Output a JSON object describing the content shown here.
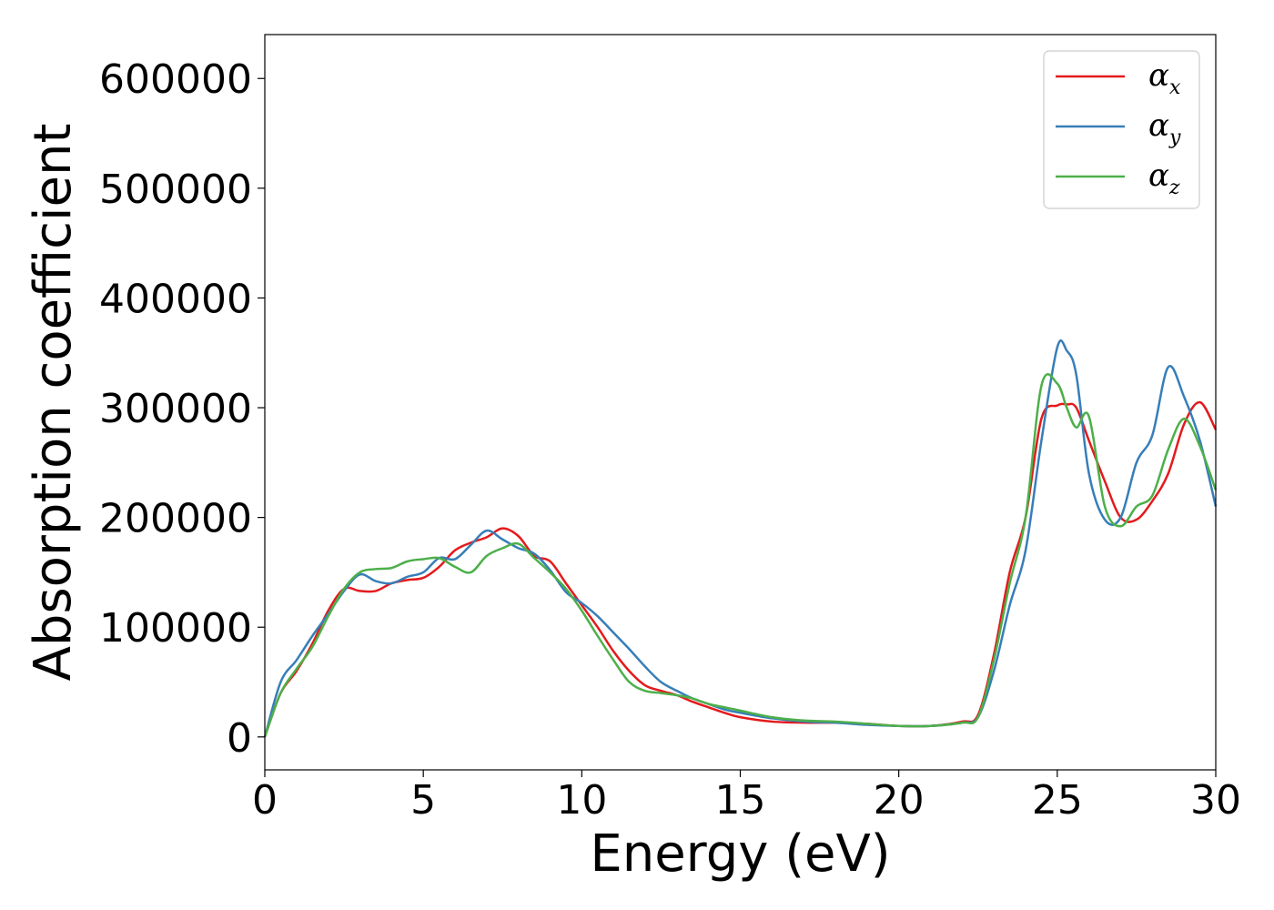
{
  "chart_data": {
    "type": "line",
    "xlabel": "Energy (eV)",
    "ylabel": "Absorption coefficient",
    "xlim": [
      0,
      30
    ],
    "ylim": [
      -30000,
      640000
    ],
    "xticks": [
      0,
      5,
      10,
      15,
      20,
      25,
      30
    ],
    "yticks": [
      0,
      100000,
      200000,
      300000,
      400000,
      500000,
      600000
    ],
    "grid": false,
    "legend_position": "top-right",
    "series": [
      {
        "name": "αx",
        "name_base": "α",
        "name_sub": "x",
        "color": "#e41a1c",
        "x": [
          0,
          0.5,
          1,
          1.5,
          2,
          2.5,
          3,
          3.5,
          4,
          4.5,
          5,
          5.5,
          6,
          6.5,
          7,
          7.5,
          8,
          8.5,
          9,
          9.5,
          10,
          10.5,
          11,
          11.5,
          12,
          12.5,
          13,
          13.5,
          14,
          14.5,
          15,
          16,
          17,
          18,
          19,
          20,
          21,
          22,
          22.5,
          23,
          23.5,
          24,
          24.5,
          25,
          25.3,
          25.6,
          26,
          26.5,
          27,
          27.5,
          28,
          28.5,
          29,
          29.5,
          30
        ],
        "y": [
          0,
          40000,
          60000,
          85000,
          115000,
          135000,
          133000,
          133000,
          140000,
          143000,
          145000,
          155000,
          170000,
          177000,
          182000,
          190000,
          183000,
          165000,
          160000,
          140000,
          120000,
          100000,
          78000,
          60000,
          47000,
          42000,
          38000,
          32000,
          27000,
          22000,
          18000,
          14000,
          13000,
          13000,
          12000,
          10000,
          10000,
          14000,
          20000,
          75000,
          150000,
          200000,
          290000,
          302000,
          303000,
          300000,
          270000,
          233000,
          200000,
          198000,
          215000,
          240000,
          285000,
          305000,
          280000
        ]
      },
      {
        "name": "αy",
        "name_base": "α",
        "name_sub": "y",
        "color": "#377eb8",
        "x": [
          0,
          0.5,
          1,
          1.5,
          2,
          2.5,
          3,
          3.5,
          4,
          4.5,
          5,
          5.5,
          6,
          6.5,
          7,
          7.5,
          8,
          8.5,
          9,
          9.5,
          10,
          10.5,
          11,
          11.5,
          12,
          12.5,
          13,
          13.5,
          14,
          14.5,
          15,
          16,
          17,
          18,
          19,
          20,
          21,
          22,
          22.5,
          23,
          23.5,
          24,
          24.5,
          25,
          25.3,
          25.6,
          26,
          26.5,
          27,
          27.5,
          28,
          28.5,
          29,
          29.5,
          30
        ],
        "y": [
          0,
          50000,
          70000,
          92000,
          112000,
          133000,
          148000,
          142000,
          140000,
          146000,
          150000,
          163000,
          162000,
          175000,
          188000,
          180000,
          172000,
          167000,
          152000,
          132000,
          122000,
          110000,
          95000,
          80000,
          64000,
          50000,
          42000,
          35000,
          30000,
          25000,
          22000,
          17000,
          14000,
          13000,
          11000,
          10000,
          10000,
          13000,
          18000,
          60000,
          120000,
          170000,
          270000,
          355000,
          352000,
          330000,
          240000,
          198000,
          200000,
          250000,
          275000,
          337000,
          310000,
          270000,
          210000
        ]
      },
      {
        "name": "αz",
        "name_base": "α",
        "name_sub": "z",
        "color": "#4daf4a",
        "x": [
          0,
          0.5,
          1,
          1.5,
          2,
          2.5,
          3,
          3.5,
          4,
          4.5,
          5,
          5.5,
          6,
          6.5,
          7,
          7.5,
          8,
          8.5,
          9,
          9.5,
          10,
          10.5,
          11,
          11.5,
          12,
          12.5,
          13,
          13.5,
          14,
          14.5,
          15,
          16,
          17,
          18,
          19,
          20,
          21,
          22,
          22.5,
          23,
          23.5,
          24,
          24.5,
          25,
          25.3,
          25.6,
          26,
          26.5,
          27,
          27.5,
          28,
          28.5,
          29,
          29.5,
          30
        ],
        "y": [
          0,
          40000,
          62000,
          82000,
          110000,
          135000,
          150000,
          153000,
          154000,
          160000,
          162000,
          163000,
          155000,
          150000,
          165000,
          172000,
          176000,
          163000,
          150000,
          135000,
          115000,
          92000,
          70000,
          50000,
          42000,
          40000,
          38000,
          35000,
          30000,
          27000,
          24000,
          18000,
          15000,
          14000,
          12000,
          10000,
          10000,
          13000,
          18000,
          70000,
          140000,
          200000,
          320000,
          322000,
          300000,
          282000,
          292000,
          210000,
          192000,
          210000,
          220000,
          262000,
          290000,
          265000,
          225000
        ]
      }
    ]
  }
}
